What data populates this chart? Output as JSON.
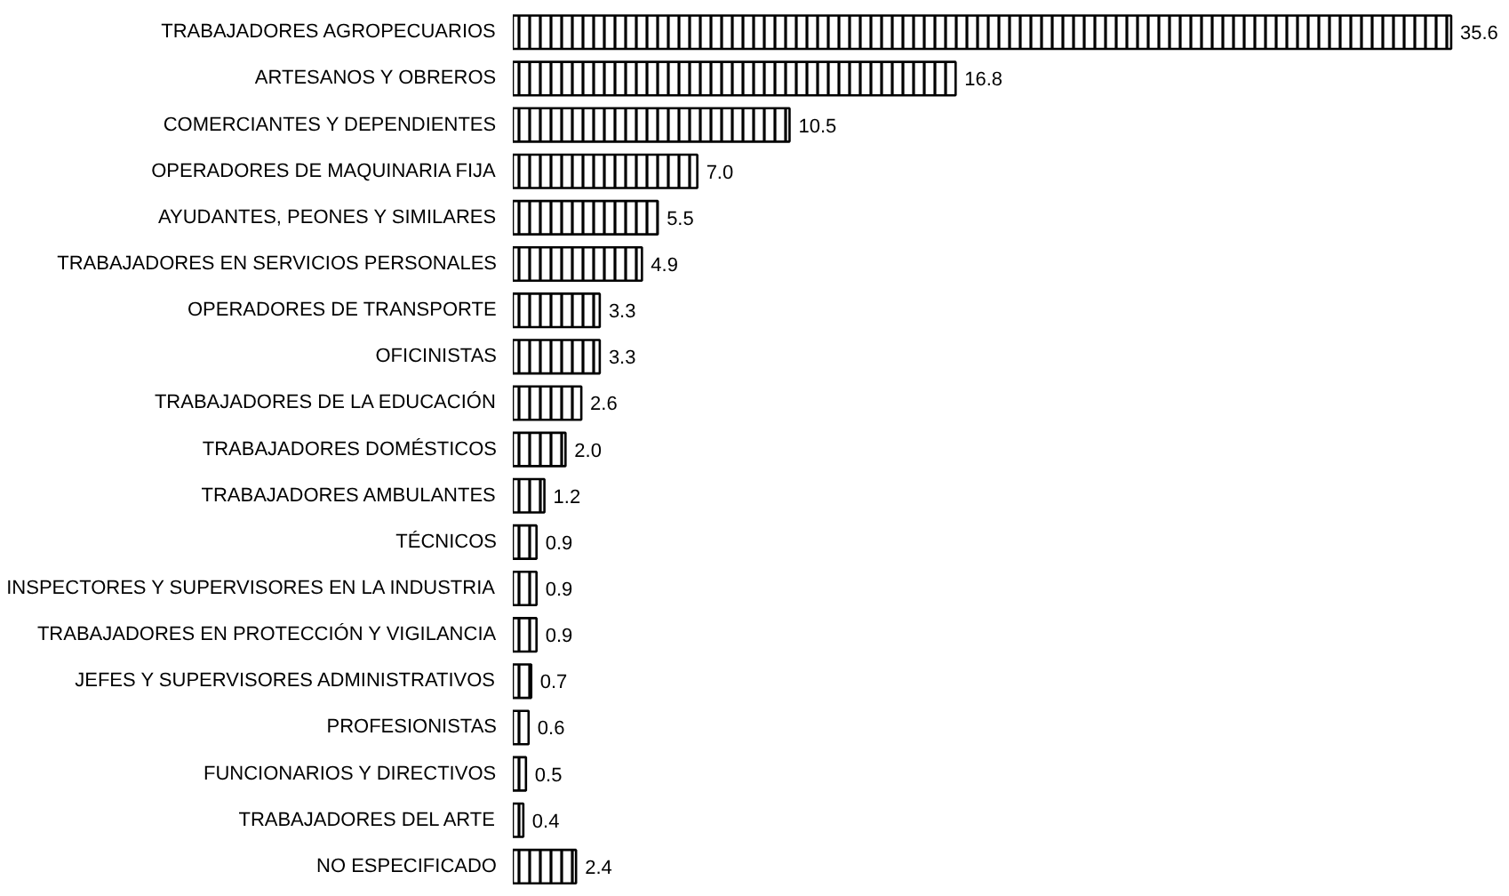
{
  "chart_data": {
    "type": "bar",
    "orientation": "horizontal",
    "color": "#000000",
    "value_labels": [
      "35.6",
      "16.8",
      "10.5",
      "7.0",
      "5.5",
      "4.9",
      "3.3",
      "3.3",
      "2.6",
      "2.0",
      "1.2",
      "0.9",
      "0.9",
      "0.9",
      "0.7",
      "0.6",
      "0.5",
      "0.4",
      "2.4"
    ],
    "categories": [
      "TRABAJADORES AGROPECUARIOS",
      "ARTESANOS Y OBREROS",
      "COMERCIANTES Y DEPENDIENTES",
      "OPERADORES DE MAQUINARIA FIJA",
      "AYUDANTES, PEONES Y SIMILARES",
      "TRABAJADORES EN SERVICIOS PERSONALES",
      "OPERADORES DE TRANSPORTE",
      "OFICINISTAS",
      "TRABAJADORES DE LA EDUCACIÓN",
      "TRABAJADORES DOMÉSTICOS",
      "TRABAJADORES AMBULANTES",
      "TÉCNICOS",
      "INSPECTORES Y SUPERVISORES EN LA INDUSTRIA",
      "TRABAJADORES EN PROTECCIÓN Y VIGILANCIA",
      "JEFES Y SUPERVISORES ADMINISTRATIVOS",
      "PROFESIONISTAS",
      "FUNCIONARIOS Y DIRECTIVOS",
      "TRABAJADORES DEL ARTE",
      "NO ESPECIFICADO"
    ],
    "values": [
      35.6,
      16.8,
      10.5,
      7.0,
      5.5,
      4.9,
      3.3,
      3.3,
      2.6,
      2.0,
      1.2,
      0.9,
      0.9,
      0.9,
      0.7,
      0.6,
      0.5,
      0.4,
      2.4
    ]
  }
}
